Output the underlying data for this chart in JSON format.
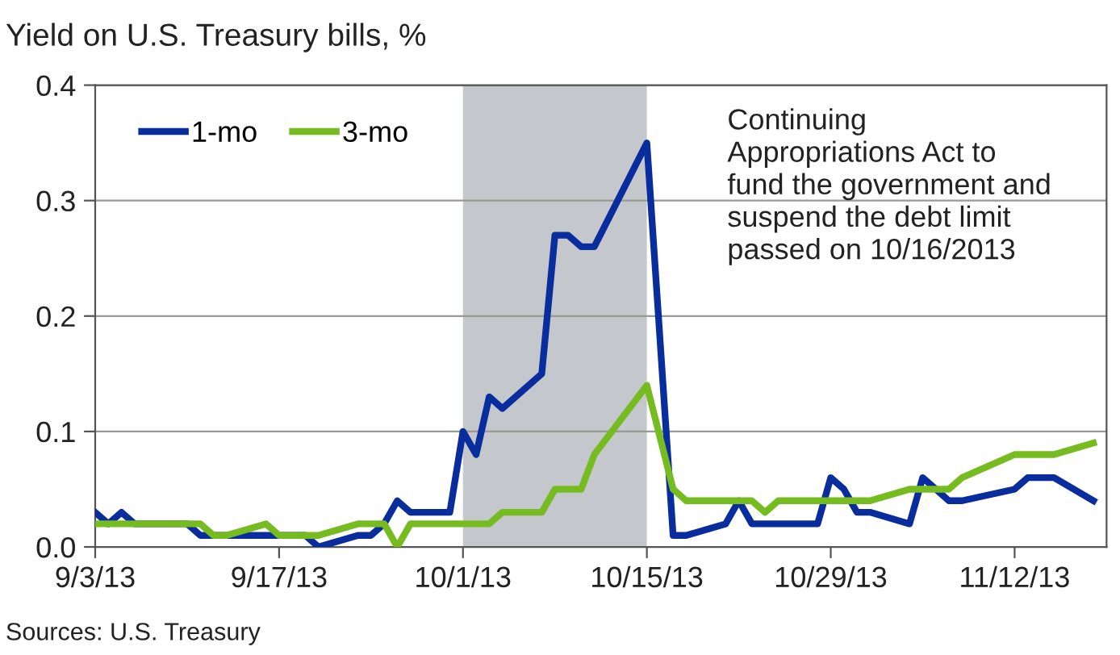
{
  "chart_data": {
    "type": "line",
    "title": "Yield on U.S. Treasury bills, %",
    "x": [
      "2013-09-03",
      "2013-09-04",
      "2013-09-05",
      "2013-09-06",
      "2013-09-09",
      "2013-09-10",
      "2013-09-11",
      "2013-09-12",
      "2013-09-13",
      "2013-09-16",
      "2013-09-17",
      "2013-09-18",
      "2013-09-19",
      "2013-09-20",
      "2013-09-23",
      "2013-09-24",
      "2013-09-25",
      "2013-09-26",
      "2013-09-27",
      "2013-09-30",
      "2013-10-01",
      "2013-10-02",
      "2013-10-03",
      "2013-10-04",
      "2013-10-07",
      "2013-10-08",
      "2013-10-09",
      "2013-10-10",
      "2013-10-11",
      "2013-10-15",
      "2013-10-17",
      "2013-10-18",
      "2013-10-21",
      "2013-10-22",
      "2013-10-23",
      "2013-10-24",
      "2013-10-25",
      "2013-10-28",
      "2013-10-29",
      "2013-10-30",
      "2013-10-31",
      "2013-11-01",
      "2013-11-04",
      "2013-11-05",
      "2013-11-06",
      "2013-11-07",
      "2013-11-08",
      "2013-11-12",
      "2013-11-13",
      "2013-11-14",
      "2013-11-15",
      "2013-11-18"
    ],
    "series": [
      {
        "name": "1-mo",
        "color": "#0a2d9e",
        "values": [
          0.03,
          0.02,
          0.03,
          0.02,
          0.02,
          0.02,
          0.01,
          0.01,
          0.01,
          0.01,
          0.01,
          0.01,
          0.01,
          0.0,
          0.01,
          0.01,
          0.02,
          0.04,
          0.03,
          0.03,
          0.1,
          0.08,
          0.13,
          0.12,
          0.15,
          0.27,
          0.27,
          0.26,
          0.26,
          0.35,
          0.01,
          0.01,
          0.02,
          0.04,
          0.02,
          0.02,
          0.02,
          0.02,
          0.06,
          0.05,
          0.03,
          0.03,
          0.02,
          0.06,
          0.05,
          0.04,
          0.04,
          0.05,
          0.06,
          0.06,
          0.06,
          0.04
        ]
      },
      {
        "name": "3-mo",
        "color": "#76bc21",
        "values": [
          0.02,
          0.02,
          0.02,
          0.02,
          0.02,
          0.02,
          0.02,
          0.01,
          0.01,
          0.02,
          0.01,
          0.01,
          0.01,
          0.01,
          0.02,
          0.02,
          0.02,
          0.0,
          0.02,
          0.02,
          0.02,
          0.02,
          0.02,
          0.03,
          0.03,
          0.05,
          0.05,
          0.05,
          0.08,
          0.14,
          0.05,
          0.04,
          0.04,
          0.04,
          0.04,
          0.03,
          0.04,
          0.04,
          0.04,
          0.04,
          0.04,
          0.04,
          0.05,
          0.05,
          0.05,
          0.05,
          0.06,
          0.08,
          0.08,
          0.08,
          0.08,
          0.09
        ]
      }
    ],
    "xlim": [
      "2013-09-03",
      "2013-11-19"
    ],
    "xticks": [
      {
        "value": "2013-09-03",
        "label": "9/3/13"
      },
      {
        "value": "2013-09-17",
        "label": "9/17/13"
      },
      {
        "value": "2013-10-01",
        "label": "10/1/13"
      },
      {
        "value": "2013-10-15",
        "label": "10/15/13"
      },
      {
        "value": "2013-10-29",
        "label": "10/29/13"
      },
      {
        "value": "2013-11-12",
        "label": "11/12/13"
      }
    ],
    "ylim": [
      0,
      0.4
    ],
    "yticks": [
      {
        "value": 0,
        "label": "0.0"
      },
      0.1,
      0.2,
      0.3,
      0.4
    ],
    "bands": [
      {
        "axis": "x",
        "from": "2013-10-01",
        "to": "2013-10-15",
        "color": "#c4c8cc"
      }
    ],
    "annotations": [
      "Continuing\nAppropriations Act to\nfund the government and\nsuspend the debt limit\npassed on 10/16/2013",
      "Sources: U.S. Treasury"
    ],
    "grid": "y",
    "legend": "top left",
    "marker": "none",
    "line_style": "solid"
  }
}
